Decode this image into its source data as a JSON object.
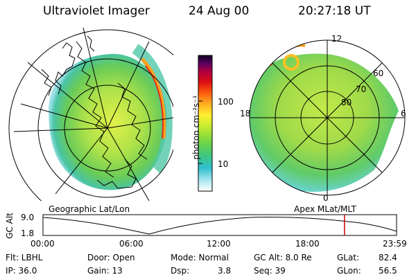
{
  "header": {
    "instrument": "Ultraviolet Imager",
    "date": "24 Aug 00",
    "time": "20:27:18 UT"
  },
  "colorbar": {
    "unit_label": "photon cm⁻²s⁻¹",
    "ticks": [
      "100",
      "10"
    ]
  },
  "geo_map": {
    "label": "Geographic Lat/Lon"
  },
  "polar_map": {
    "label": "Apex MLat/MLT",
    "mlt_labels": [
      "12",
      "18",
      "6",
      "0"
    ],
    "lat_labels": [
      "60",
      "70",
      "80"
    ]
  },
  "altitude_plot": {
    "ylabel": "GC Alt",
    "y_ticks": [
      "9.0",
      "1.8"
    ],
    "x_ticks": [
      "00:00",
      "06:00",
      "12:00",
      "18:00",
      "23:59"
    ],
    "marker_time": "20:27",
    "marker_color": "#cc0000"
  },
  "status": {
    "flt": "Flt: LBHL",
    "ip": "IP: 36.0",
    "door": "Door: Open",
    "gain": "Gain: 13",
    "mode": "Mode: Normal",
    "dsp_label": "Dsp:",
    "dsp_value": "3.8",
    "gcalt": "GC Alt: 8.0 Re",
    "seq": "Seq: 39",
    "glat_label": "GLat:",
    "glat_value": "82.4",
    "glon_label": "GLon:",
    "glon_value": "56.5"
  }
}
